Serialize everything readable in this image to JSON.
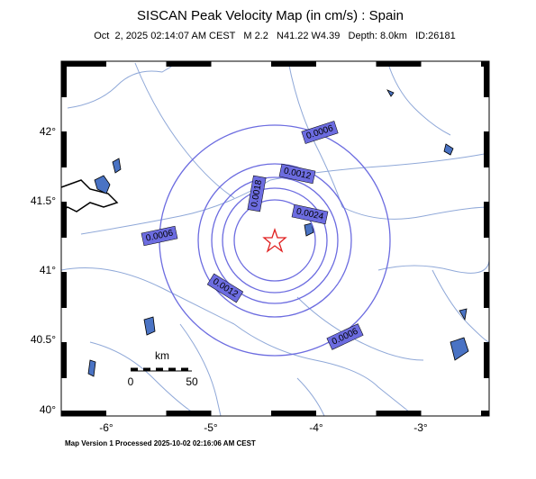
{
  "map": {
    "title": "SISCAN Peak Velocity Map (in cm/s) : Spain",
    "subtitle": "Oct  2, 2025 02:14:07 AM CEST   M 2.2   N41.22 W4.39   Depth: 8.0km   ID:26181",
    "lat_labels": [
      "42°",
      "41.5°",
      "41°",
      "40.5°",
      "40°"
    ],
    "lon_labels": [
      "-6°",
      "-5°",
      "-4°",
      "-3°"
    ],
    "contour_labels": [
      "0.0006",
      "0.0012",
      "0.0018",
      "0.0024",
      "0.0006",
      "0.0012",
      "0.0006"
    ],
    "scale_bar": {
      "unit": "km",
      "ticks": [
        "0",
        "50"
      ]
    },
    "footer": "Map Version 1 Processed 2025-10-02 02:16:06 AM CEST"
  }
}
